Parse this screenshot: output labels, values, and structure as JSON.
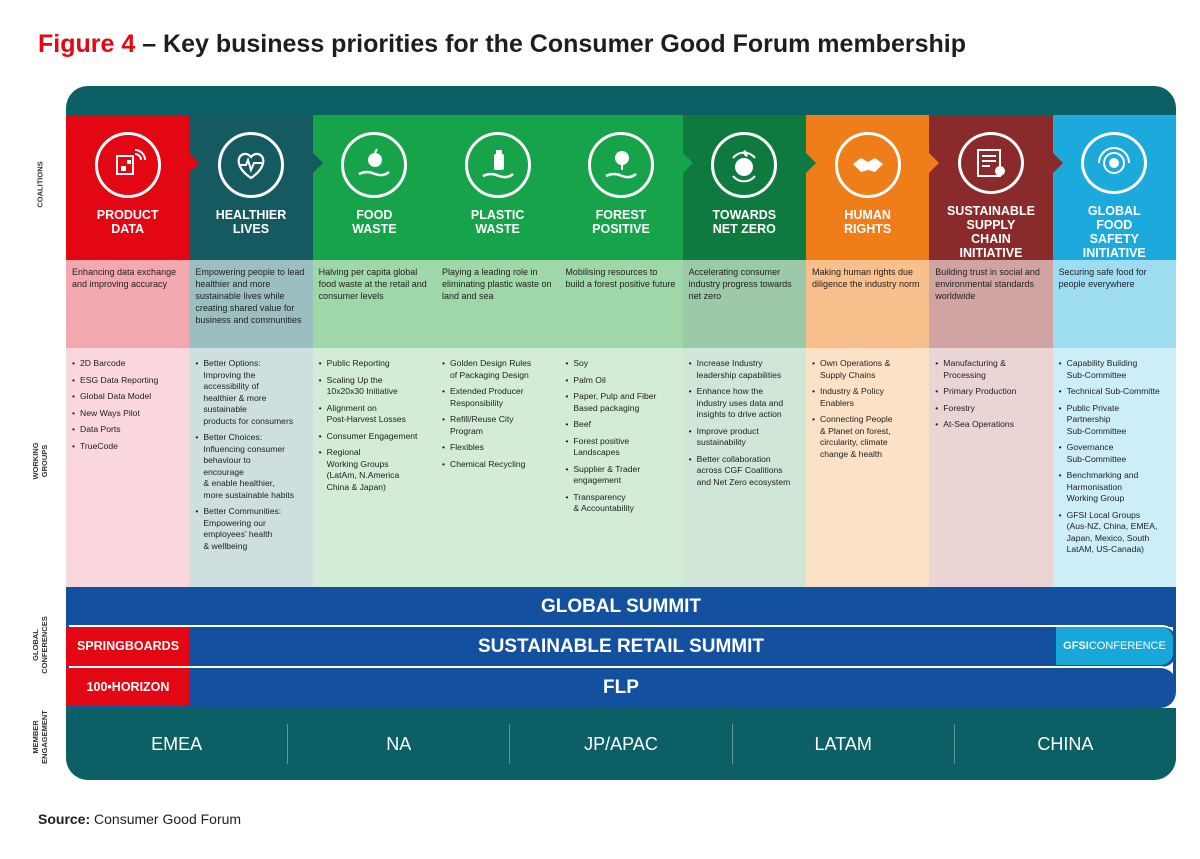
{
  "title": {
    "figure": "Figure 4",
    "rest": " – Key business priorities for the Consumer Good Forum membership"
  },
  "side_labels": {
    "coalitions": "COALITIONS",
    "working_groups": "WORKING\nGROUPS",
    "global_conferences": "GLOBAL\nCONFERENCES",
    "member_engagement": "MEMBER\nENGAGEMENT"
  },
  "colors": {
    "red": "#e30613",
    "dark_teal": "#155a60",
    "green": "#16a34a",
    "dark_green": "#0e7a3f",
    "orange": "#ef7d1a",
    "maroon": "#8a2a2b",
    "light_blue": "#1ca9dc",
    "navy": "#1350a0"
  },
  "coalitions": [
    {
      "name": "PRODUCT\nDATA",
      "icon": "product-data-icon",
      "color": "#e30613",
      "desc_bg": "#f3a8b0",
      "grp_bg": "#f9d7dc",
      "description": "Enhancing data exchange and improving accuracy",
      "groups": [
        "2D Barcode",
        "ESG Data Reporting",
        "Global Data Model",
        "New Ways Pilot",
        "Data Ports",
        "TrueCode"
      ]
    },
    {
      "name": "HEALTHIER\nLIVES",
      "icon": "heart-pulse-icon",
      "color": "#155a60",
      "desc_bg": "#9bbec0",
      "grp_bg": "#cfdfe0",
      "description": "Empowering people to lead healthier and more sustainable lives while creating shared value for business and communities",
      "groups": [
        "Better Options:\nImproving the\naccessibility of\nhealthier & more\nsustainable\nproducts for consumers",
        "Better Choices:\nInfluencing consumer\nbehaviour to\nencourage\n& enable healthier,\nmore sustainable habits",
        "Better Communities:\nEmpowering our\nemployees’ health\n& wellbeing"
      ]
    },
    {
      "name": "FOOD\nWASTE",
      "icon": "apple-hand-icon",
      "color": "#16a34a",
      "desc_bg": "#9fd7a8",
      "grp_bg": "#d2ecd6",
      "description": "Halving per capita global food waste at the retail and consumer levels",
      "groups": [
        "Public Reporting",
        "Scaling Up the\n10x20x30 Initiative",
        "Alignment on\nPost-Harvest Losses",
        "Consumer Engagement",
        "Regional\nWorking Groups\n(LatAm, N.America\nChina & Japan)"
      ]
    },
    {
      "name": "PLASTIC\nWASTE",
      "icon": "bottle-hand-icon",
      "color": "#16a34a",
      "desc_bg": "#9fd7a8",
      "grp_bg": "#d2ecd6",
      "description": "Playing a leading role in eliminating plastic waste on land and sea",
      "groups": [
        "Golden Design Rules\nof Packaging Design",
        "Extended Producer\nResponsibility",
        "Refill/Reuse City\nProgram",
        "Flexibles",
        "Chemical Recycling"
      ]
    },
    {
      "name": "FOREST\nPOSITIVE",
      "icon": "tree-hand-icon",
      "color": "#16a34a",
      "desc_bg": "#9fd7a8",
      "grp_bg": "#d2ecd6",
      "description": "Mobilising resources to build a forest positive future",
      "groups": [
        "Soy",
        "Palm Oil",
        "Paper, Pulp and Fiber\nBased packaging",
        "Beef",
        "Forest positive\nLandscapes",
        "Supplier & Trader\nengagement",
        "Transparency\n& Accountability"
      ]
    },
    {
      "name": "TOWARDS\nNET ZERO",
      "icon": "globe-leaf-icon",
      "color": "#0e7a3f",
      "desc_bg": "#9cc9a7",
      "grp_bg": "#d0e6d6",
      "description": "Accelerating consumer industry progress towards net zero",
      "groups": [
        "Increase Industry\nleadership capabilities",
        "Enhance how the\nindustry uses data and\ninsights to drive action",
        "Improve product\nsustainability",
        "Better collaboration\nacross CGF Coalitions\nand Net Zero ecosystem"
      ]
    },
    {
      "name": "HUMAN\nRIGHTS",
      "icon": "handshake-icon",
      "color": "#ef7d1a",
      "desc_bg": "#f7c08d",
      "grp_bg": "#fbe1c6",
      "description": "Making human rights due diligence the industry norm",
      "groups": [
        "Own Operations &\nSupply Chains",
        "Industry & Policy\nEnablers",
        "Connecting People\n& Planet on forest,\ncircularity, climate\nchange & health"
      ]
    },
    {
      "name": "SUSTAINABLE\nSUPPLY\nCHAIN\nINITIATIVE",
      "icon": "certificate-icon",
      "color": "#8a2a2b",
      "desc_bg": "#d1a4a4",
      "grp_bg": "#ead4d4",
      "description": "Building trust in social and environmental standards worldwide",
      "groups": [
        "Manufacturing &\nProcessing",
        "Primary Production",
        "Forestry",
        "At-Sea Operations"
      ]
    },
    {
      "name": "GLOBAL\nFOOD\nSAFETY\nINITIATIVE",
      "icon": "gfsi-globe-icon",
      "color": "#1ca9dc",
      "desc_bg": "#9edcf2",
      "grp_bg": "#cdeef9",
      "description": "Securing safe food for people everywhere",
      "groups": [
        "Capability Building\nSub-Committee",
        "Technical Sub-Committe",
        "Public Private\nPartnership\nSub-Committee",
        "Governance\nSub-Committee",
        "Benchmarking and\nHarmonisation\nWorking Group",
        "GFSI Local Groups\n(Aus-NZ, China, EMEA,\nJapan, Mexico, South\nLatAM, US-Canada)"
      ]
    }
  ],
  "conferences": {
    "global_summit": "GLOBAL SUMMIT",
    "retail_summit": "SUSTAINABLE RETAIL SUMMIT",
    "springboards": "SPRINGBOARDS",
    "gfsi_bold": "GFSI",
    "gfsi_rest": "CONFERENCE",
    "horizon": "100•HORIZON",
    "flp": "FLP"
  },
  "regions": [
    "EMEA",
    "NA",
    "JP/APAC",
    "LATAM",
    "CHINA"
  ],
  "source": {
    "label": "Source:",
    "text": " Consumer Good Forum"
  }
}
